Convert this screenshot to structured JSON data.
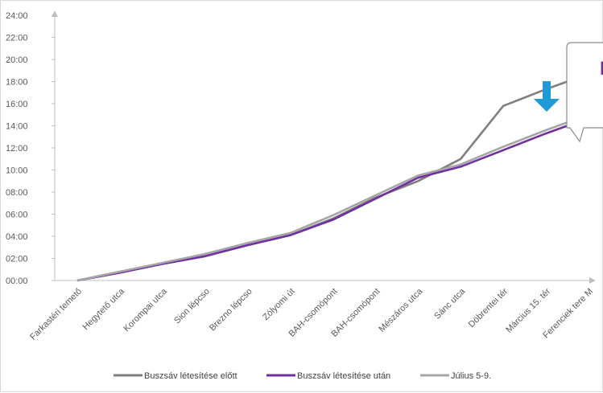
{
  "chart_data": {
    "type": "line",
    "categories": [
      "Farkastéri temető",
      "Hegytető utca",
      "Korompai utca",
      "Sion lépcso",
      "Brezno lépcso",
      "Zólyomi út",
      "BAH-csomópont",
      "BAH-csomópont",
      "Mészáros utca",
      "Sánc utca",
      "Döbrentei tér",
      "Március 15. tér",
      "Ferenciek tere M"
    ],
    "y_ticks": [
      "00:00",
      "02:00",
      "04:00",
      "06:00",
      "08:00",
      "10:00",
      "12:00",
      "14:00",
      "16:00",
      "18:00",
      "20:00",
      "22:00",
      "24:00"
    ],
    "ylim": [
      0,
      24
    ],
    "y_unit": "minutes:seconds",
    "grid": false,
    "legend_position": "bottom",
    "series": [
      {
        "name": "Buszsáv létesítése előtt",
        "color": "#7f7f7f",
        "values": [
          0,
          0.8,
          1.5,
          2.2,
          3.2,
          4.1,
          5.6,
          7.5,
          9.0,
          11.0,
          15.8,
          17.3,
          18.7
        ]
      },
      {
        "name": "Buszsáv létesítése után",
        "color": "#7030a0",
        "values": [
          0,
          0.7,
          1.5,
          2.2,
          3.2,
          4.1,
          5.5,
          7.4,
          9.3,
          10.3,
          11.8,
          13.3,
          14.7
        ]
      },
      {
        "name": "Július 5-9.",
        "color": "#a6a6a6",
        "values": [
          0,
          0.8,
          1.6,
          2.4,
          3.4,
          4.3,
          5.9,
          7.7,
          9.5,
          10.5,
          12.1,
          13.6,
          15.0
        ]
      }
    ]
  },
  "annotation": {
    "callout_text": "I",
    "callout_text_color": "#7030a0",
    "arrow_color": "#1e9bd7",
    "arrow_direction": "down"
  }
}
